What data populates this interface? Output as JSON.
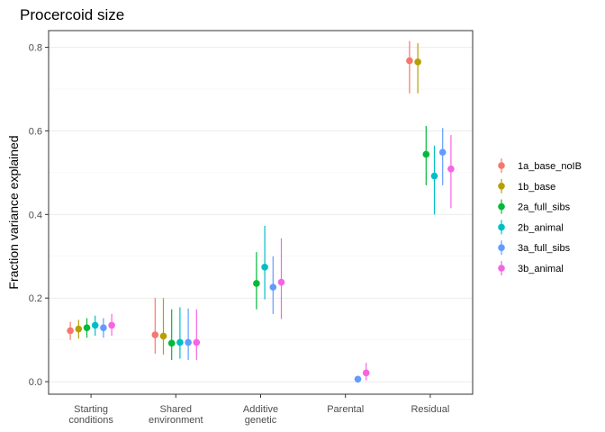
{
  "chart_data": {
    "type": "scatter",
    "title": "Procercoid size",
    "xlabel": "",
    "ylabel": "Fraction variance explained",
    "ylim": [
      -0.03,
      0.84
    ],
    "yticks": [
      0.0,
      0.2,
      0.4,
      0.6,
      0.8
    ],
    "ytick_labels": [
      "0.0",
      "0.2",
      "0.4",
      "0.6",
      "0.8"
    ],
    "categories": [
      [
        "Starting",
        "conditions"
      ],
      [
        "Shared",
        "environment"
      ],
      [
        "Additive",
        "genetic"
      ],
      [
        "Parental"
      ],
      [
        "Residual"
      ]
    ],
    "grid": true,
    "legend_position": "right",
    "series": [
      {
        "name": "1a_base_noIB",
        "color": "#F8766D",
        "values": [
          0.122,
          0.112,
          null,
          null,
          0.768
        ],
        "lower": [
          0.1,
          0.067,
          null,
          null,
          0.69
        ],
        "upper": [
          0.143,
          0.2,
          null,
          null,
          0.815
        ]
      },
      {
        "name": "1b_base",
        "color": "#B79F00",
        "values": [
          0.126,
          0.109,
          null,
          null,
          0.765
        ],
        "lower": [
          0.103,
          0.065,
          null,
          null,
          0.69
        ],
        "upper": [
          0.148,
          0.2,
          null,
          null,
          0.81
        ]
      },
      {
        "name": "2a_full_sibs",
        "color": "#00BA38",
        "values": [
          0.129,
          0.092,
          0.235,
          null,
          0.544
        ],
        "lower": [
          0.105,
          0.052,
          0.173,
          null,
          0.47
        ],
        "upper": [
          0.152,
          0.173,
          0.31,
          null,
          0.612
        ]
      },
      {
        "name": "2b_animal",
        "color": "#00BFC4",
        "values": [
          0.135,
          0.094,
          0.274,
          null,
          0.492
        ],
        "lower": [
          0.11,
          0.055,
          0.197,
          null,
          0.4
        ],
        "upper": [
          0.158,
          0.178,
          0.373,
          null,
          0.565
        ]
      },
      {
        "name": "3a_full_sibs",
        "color": "#619CFF",
        "values": [
          0.129,
          0.094,
          0.226,
          0.006,
          0.549
        ],
        "lower": [
          0.105,
          0.052,
          0.162,
          0.0,
          0.47
        ],
        "upper": [
          0.152,
          0.175,
          0.3,
          0.012,
          0.607
        ]
      },
      {
        "name": "3b_animal",
        "color": "#F564E3",
        "values": [
          0.135,
          0.094,
          0.238,
          0.021,
          0.509
        ],
        "lower": [
          0.11,
          0.052,
          0.15,
          0.003,
          0.415
        ],
        "upper": [
          0.162,
          0.173,
          0.343,
          0.045,
          0.59
        ]
      }
    ]
  }
}
